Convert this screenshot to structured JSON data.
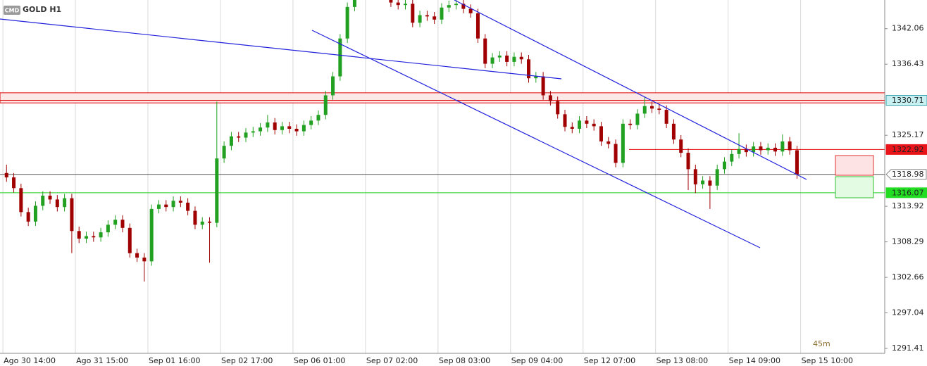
{
  "chart_data": {
    "type": "candlestick",
    "badge": "CMD",
    "title": "GOLD H1",
    "timer": "45m",
    "up_color": "#22a022",
    "down_color": "#a00000",
    "xlim": [
      -0.4,
      121.6
    ],
    "ylim": [
      1290.63,
      1346.6
    ],
    "xticks": [
      {
        "value": 0,
        "label": "Ago 30 14:00"
      },
      {
        "value": 10,
        "label": "Ago 31 15:00"
      },
      {
        "value": 20,
        "label": "Sep 01 16:00"
      },
      {
        "value": 30,
        "label": "Sep 02 17:00"
      },
      {
        "value": 40,
        "label": "Sep 06 01:00"
      },
      {
        "value": 50,
        "label": "Sep 07 02:00"
      },
      {
        "value": 60,
        "label": "Sep 08 03:00"
      },
      {
        "value": 70,
        "label": "Sep 09 04:00"
      },
      {
        "value": 80,
        "label": "Sep 12 07:00"
      },
      {
        "value": 90,
        "label": "Sep 13 08:00"
      },
      {
        "value": 100,
        "label": "Sep 14 09:00"
      },
      {
        "value": 110,
        "label": "Sep 15 10:00"
      }
    ],
    "yticks": [
      1342.06,
      1336.43,
      1325.17,
      1313.92,
      1308.29,
      1302.66,
      1297.04,
      1291.41
    ],
    "grid": true,
    "zone": {
      "low": 1330.3,
      "high": 1331.9,
      "color": "#e00000"
    },
    "levels": [
      {
        "value": 1330.71,
        "color": "#e00000",
        "tag_color": "#c6f0f2"
      },
      {
        "value": 1322.92,
        "color": "#e00000",
        "tag_color": "#e8141a"
      },
      {
        "value": 1318.98,
        "color": "#555555",
        "tag_color": "#ffffff"
      },
      {
        "value": 1316.07,
        "color": "#22cc22",
        "tag_color": "#22dd22"
      }
    ],
    "open": [
      1319.2,
      1318.5,
      1316.8,
      1313.0,
      1311.5,
      1314.0,
      1315.6,
      1315.0,
      1313.8,
      1315.2,
      1310.0,
      1308.8,
      1309.2,
      1309.0,
      1309.8,
      1311.0,
      1311.8,
      1310.5,
      1306.5,
      1305.8,
      1305.2,
      1313.5,
      1314.2,
      1313.8,
      1314.8,
      1314.5,
      1313.2,
      1311.0,
      1311.5,
      1311.3,
      1321.5,
      1323.5,
      1325.0,
      1324.8,
      1325.6,
      1325.8,
      1326.4,
      1327.2,
      1326.0,
      1326.6,
      1326.2,
      1325.8,
      1326.8,
      1327.5,
      1328.4,
      1331.5,
      1334.5,
      1340.5,
      1345.5,
      1347.5,
      1348.0,
      1348.5,
      1348.2,
      1347.5,
      1346.2,
      1345.8,
      1346.0,
      1343.0,
      1344.2,
      1344.0,
      1343.5,
      1345.4,
      1345.8,
      1346.0,
      1345.2,
      1344.5,
      1340.5,
      1336.5,
      1337.5,
      1337.8,
      1336.8,
      1337.6,
      1337.2,
      1334.2,
      1334.5,
      1331.5,
      1330.6,
      1328.5,
      1326.5,
      1326.2,
      1327.5,
      1327.0,
      1326.6,
      1324.2,
      1323.8,
      1320.8,
      1327.0,
      1326.8,
      1328.6,
      1329.8,
      1329.4,
      1329.2,
      1327.0,
      1324.5,
      1322.4,
      1319.8,
      1317.4,
      1318.0,
      1317.2,
      1319.8,
      1321.0,
      1322.2,
      1323.0,
      1322.5,
      1323.4,
      1322.8,
      1323.2,
      1322.6,
      1324.2,
      1322.8
    ],
    "high": [
      1320.5,
      1319.2,
      1317.5,
      1313.7,
      1314.7,
      1316.3,
      1316.3,
      1315.7,
      1315.9,
      1315.9,
      1310.7,
      1309.9,
      1309.9,
      1310.5,
      1311.7,
      1312.5,
      1312.5,
      1311.2,
      1307.2,
      1306.5,
      1314.2,
      1314.9,
      1314.9,
      1315.5,
      1315.5,
      1315.2,
      1313.9,
      1312.2,
      1312.2,
      1330.5,
      1324.2,
      1325.7,
      1325.7,
      1326.3,
      1326.5,
      1327.1,
      1328.4,
      1327.9,
      1327.3,
      1327.3,
      1326.9,
      1327.5,
      1328.2,
      1329.1,
      1332.2,
      1335.2,
      1341.2,
      1346.2,
      1348.2,
      1348.7,
      1349.2,
      1349.2,
      1348.9,
      1348.2,
      1346.9,
      1346.7,
      1346.7,
      1344.9,
      1344.9,
      1344.7,
      1346.1,
      1346.5,
      1346.7,
      1346.7,
      1345.9,
      1345.2,
      1341.2,
      1338.2,
      1338.5,
      1338.5,
      1338.3,
      1338.3,
      1337.9,
      1335.2,
      1335.2,
      1332.2,
      1331.3,
      1329.2,
      1327.2,
      1328.2,
      1328.2,
      1327.7,
      1327.3,
      1324.9,
      1324.5,
      1327.7,
      1327.7,
      1329.3,
      1331.2,
      1330.5,
      1330.1,
      1329.9,
      1327.7,
      1325.2,
      1323.1,
      1320.5,
      1318.7,
      1318.7,
      1320.5,
      1321.7,
      1322.9,
      1325.5,
      1323.7,
      1324.1,
      1324.1,
      1323.9,
      1323.9,
      1325.3,
      1324.9,
      1323.5
    ],
    "low": [
      1317.8,
      1316.1,
      1312.3,
      1310.8,
      1310.8,
      1313.3,
      1314.3,
      1313.1,
      1313.1,
      1306.5,
      1308.1,
      1308.1,
      1308.3,
      1308.3,
      1309.1,
      1310.3,
      1309.8,
      1305.8,
      1305.1,
      1302.0,
      1304.5,
      1312.8,
      1313.1,
      1313.1,
      1313.8,
      1312.5,
      1310.3,
      1310.3,
      1305.0,
      1310.6,
      1320.8,
      1322.8,
      1324.1,
      1324.1,
      1324.9,
      1325.1,
      1325.7,
      1325.3,
      1325.3,
      1325.5,
      1325.1,
      1325.1,
      1326.1,
      1326.8,
      1327.7,
      1330.8,
      1333.8,
      1339.8,
      1344.8,
      1346.8,
      1347.3,
      1347.5,
      1346.8,
      1345.5,
      1345.1,
      1345.1,
      1342.3,
      1342.3,
      1343.3,
      1342.8,
      1342.8,
      1344.7,
      1345.1,
      1344.5,
      1343.8,
      1339.8,
      1335.8,
      1335.8,
      1336.8,
      1336.1,
      1336.1,
      1336.5,
      1333.5,
      1333.5,
      1330.8,
      1329.9,
      1327.8,
      1325.8,
      1325.5,
      1325.5,
      1326.3,
      1325.9,
      1323.5,
      1323.1,
      1320.1,
      1320.1,
      1326.1,
      1326.1,
      1327.9,
      1328.7,
      1328.5,
      1326.3,
      1323.8,
      1321.7,
      1316.5,
      1316.0,
      1316.7,
      1313.5,
      1316.5,
      1319.1,
      1320.3,
      1321.5,
      1321.8,
      1321.8,
      1322.1,
      1322.1,
      1321.9,
      1321.9,
      1322.1,
      1318.3
    ],
    "close": [
      1318.5,
      1316.8,
      1313.0,
      1311.5,
      1314.0,
      1315.6,
      1315.0,
      1313.8,
      1315.2,
      1310.0,
      1308.8,
      1309.2,
      1309.0,
      1309.8,
      1311.0,
      1311.8,
      1310.5,
      1306.5,
      1305.8,
      1305.2,
      1313.5,
      1314.2,
      1313.8,
      1314.8,
      1314.5,
      1313.2,
      1311.0,
      1311.5,
      1311.3,
      1321.5,
      1323.5,
      1325.0,
      1324.8,
      1325.6,
      1325.8,
      1326.4,
      1327.2,
      1326.0,
      1326.6,
      1326.2,
      1325.8,
      1326.8,
      1327.5,
      1328.4,
      1331.5,
      1334.5,
      1340.5,
      1345.5,
      1347.5,
      1348.0,
      1348.5,
      1348.2,
      1347.5,
      1346.2,
      1345.8,
      1346.0,
      1343.0,
      1344.2,
      1344.0,
      1343.5,
      1345.4,
      1345.8,
      1346.0,
      1345.2,
      1344.5,
      1340.5,
      1336.5,
      1337.5,
      1337.8,
      1336.8,
      1337.6,
      1337.2,
      1334.2,
      1334.5,
      1331.5,
      1330.6,
      1328.5,
      1326.5,
      1326.2,
      1327.5,
      1327.0,
      1326.6,
      1324.2,
      1323.8,
      1320.8,
      1327.0,
      1326.8,
      1328.6,
      1329.8,
      1329.4,
      1329.2,
      1327.0,
      1324.5,
      1322.4,
      1319.8,
      1317.4,
      1318.0,
      1317.2,
      1319.8,
      1321.0,
      1322.2,
      1323.0,
      1322.5,
      1323.4,
      1322.8,
      1323.2,
      1322.6,
      1324.2,
      1322.8,
      1319.0
    ]
  }
}
